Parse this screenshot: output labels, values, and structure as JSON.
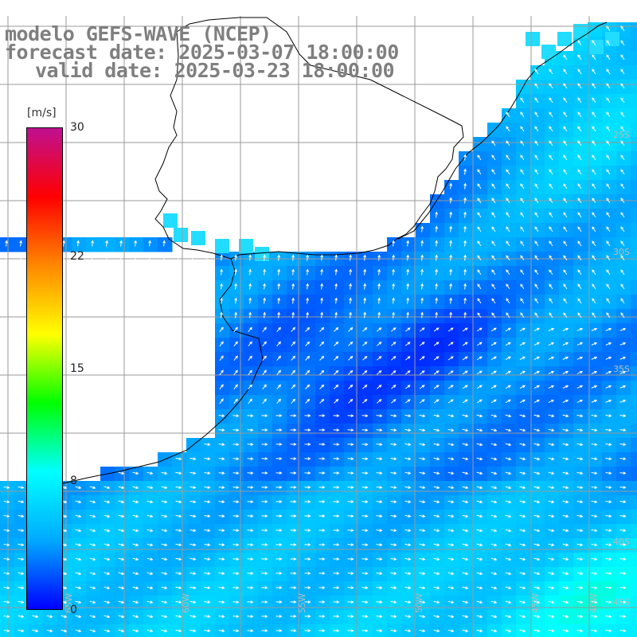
{
  "title": {
    "line1": "modelo GEFS-WAVE (NCEP)",
    "line2": "forecast date: 2025-03-07 18:00:00",
    "line3": "valid date: 2025-03-23 18:00:00"
  },
  "colorbar": {
    "unit": "[m/s]",
    "min": 0,
    "max": 30,
    "ticks": [
      {
        "value": 30,
        "label": "30"
      },
      {
        "value": 22,
        "label": "22"
      },
      {
        "value": 15,
        "label": "15"
      },
      {
        "value": 8,
        "label": "8"
      },
      {
        "value": 0,
        "label": "0"
      }
    ],
    "colors": [
      "#0000ff",
      "#00aaff",
      "#00ffff",
      "#00ff00",
      "#ffff00",
      "#ff8800",
      "#ff0000",
      "#c01090"
    ]
  },
  "map": {
    "region": "South Atlantic – Southern Brazil / Uruguay / Argentina",
    "land_color": "#ffffff",
    "coast_color": "#000000",
    "grid_color": "#9a9a9a",
    "latitude_labels": [
      "25S",
      "30S",
      "35S",
      "40S",
      "45S"
    ],
    "longitude_labels": [
      "65W",
      "60W",
      "55W",
      "50W",
      "45W",
      "40W"
    ]
  }
}
